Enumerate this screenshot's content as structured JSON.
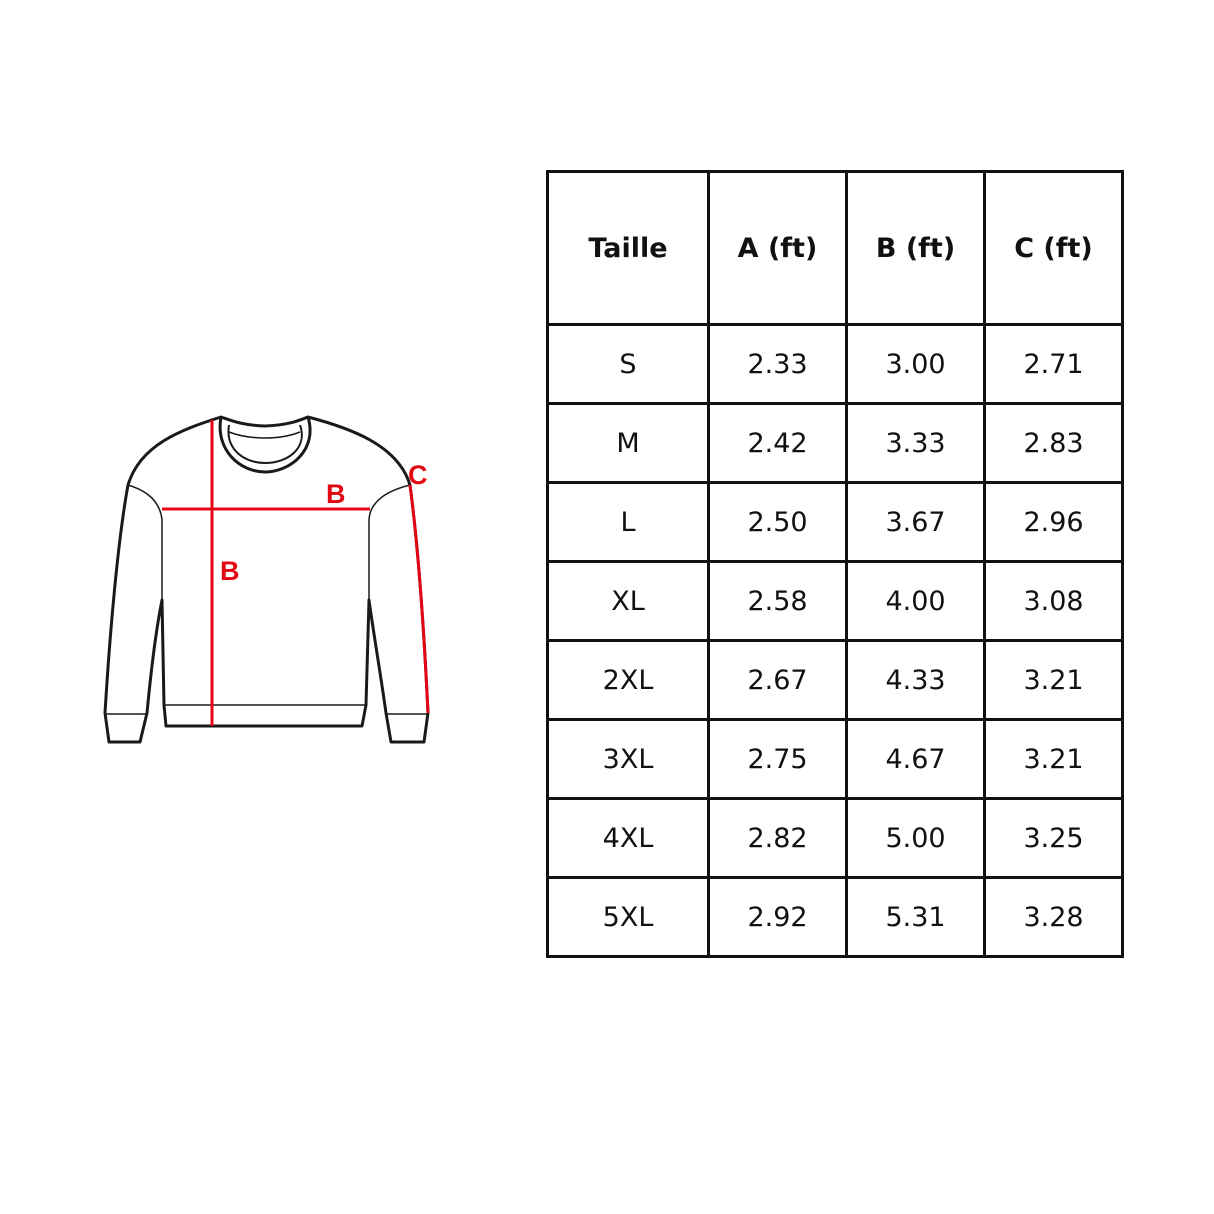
{
  "diagram": {
    "labels": {
      "vertical": "B",
      "horizontal": "B",
      "sleeve": "C"
    },
    "measure_color": "#e30613"
  },
  "table": {
    "headers": [
      "Taille",
      "A (ft)",
      "B (ft)",
      "C (ft)"
    ],
    "rows": [
      [
        "S",
        "2.33",
        "3.00",
        "2.71"
      ],
      [
        "M",
        "2.42",
        "3.33",
        "2.83"
      ],
      [
        "L",
        "2.50",
        "3.67",
        "2.96"
      ],
      [
        "XL",
        "2.58",
        "4.00",
        "3.08"
      ],
      [
        "2XL",
        "2.67",
        "4.33",
        "3.21"
      ],
      [
        "3XL",
        "2.75",
        "4.67",
        "3.21"
      ],
      [
        "4XL",
        "2.82",
        "5.00",
        "3.25"
      ],
      [
        "5XL",
        "2.92",
        "5.31",
        "3.28"
      ]
    ]
  }
}
